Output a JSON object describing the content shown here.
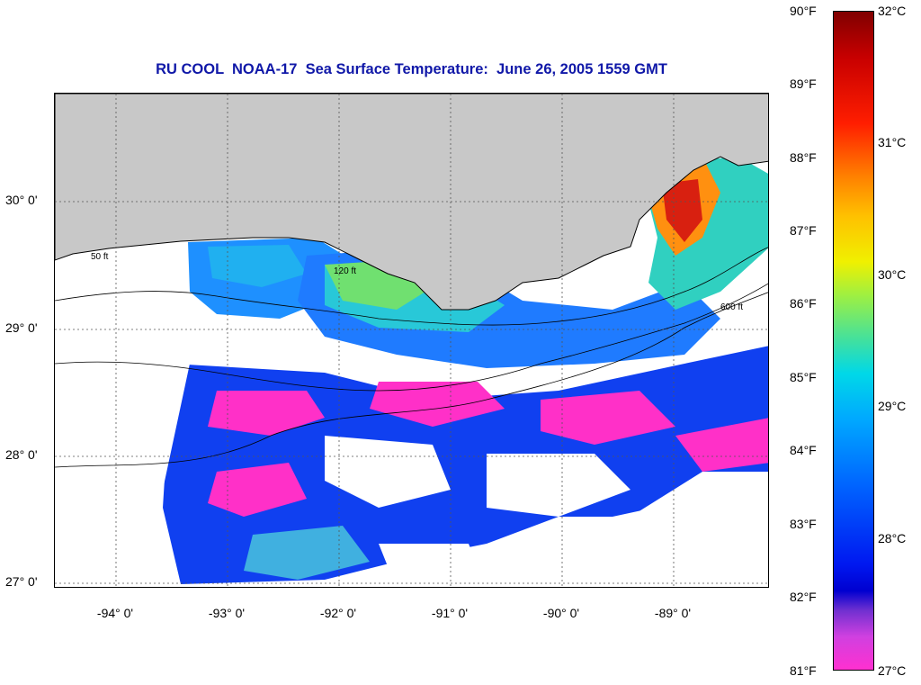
{
  "title": "RU COOL  NOAA-17  Sea Surface Temperature:  June 26, 2005 1559 GMT",
  "map": {
    "region": "Northern Gulf of Mexico, Louisiana shelf",
    "lat_labels": [
      "30° 0'",
      "29° 0'",
      "28° 0'",
      "27° 0'"
    ],
    "lon_labels": [
      "-94° 0'",
      "-93° 0'",
      "-92° 0'",
      "-91° 0'",
      "-90° 0'",
      "-89° 0'"
    ],
    "lat_values": [
      30,
      29,
      28,
      27
    ],
    "lon_values": [
      -94,
      -93,
      -92,
      -91,
      -90,
      -89
    ],
    "lat_range": [
      26.98,
      30.86
    ],
    "lon_range": [
      -94.55,
      -88.1
    ],
    "contour_labels": [
      "50 ft",
      "120 ft",
      "600 ft"
    ],
    "land_color": "#c8c8c8",
    "cloud_color": "#ffffff"
  },
  "colorbar": {
    "fahrenheit_labels": [
      "90°F",
      "89°F",
      "88°F",
      "87°F",
      "86°F",
      "85°F",
      "84°F",
      "83°F",
      "82°F",
      "81°F"
    ],
    "fahrenheit_values": [
      90,
      89,
      88,
      87,
      86,
      85,
      84,
      83,
      82,
      81
    ],
    "celsius_labels": [
      "32°C",
      "31°C",
      "30°C",
      "29°C",
      "28°C",
      "27°C"
    ],
    "celsius_values": [
      32,
      31,
      30,
      29,
      28,
      27
    ],
    "range_f": [
      81,
      90
    ]
  }
}
